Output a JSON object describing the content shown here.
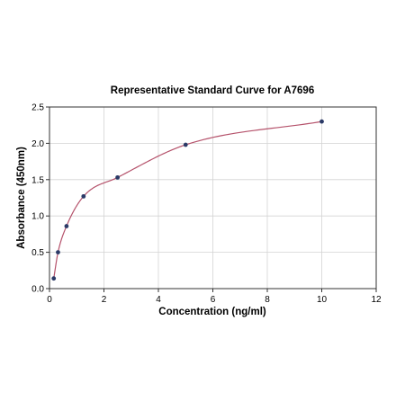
{
  "chart_data": {
    "type": "scatter",
    "title": "Representative Standard Curve for A7696",
    "xlabel": "Concentration (ng/ml)",
    "ylabel": "Absorbance (450nm)",
    "xlim": [
      0,
      12
    ],
    "ylim": [
      0,
      2.5
    ],
    "x_ticks": [
      "0",
      "2",
      "4",
      "6",
      "8",
      "10",
      "12"
    ],
    "y_ticks": [
      "0.0",
      "0.5",
      "1.0",
      "1.5",
      "2.0",
      "2.5"
    ],
    "grid": true,
    "legend": "none",
    "series": [
      {
        "points": [
          {
            "x": 0.156,
            "y": 0.14
          },
          {
            "x": 0.313,
            "y": 0.5
          },
          {
            "x": 0.625,
            "y": 0.86
          },
          {
            "x": 1.25,
            "y": 1.27
          },
          {
            "x": 2.5,
            "y": 1.53
          },
          {
            "x": 5,
            "y": 1.98
          },
          {
            "x": 10,
            "y": 2.3
          }
        ],
        "marker_color": "#2b3a67",
        "fit_curve_color": "#b5526b"
      }
    ]
  }
}
